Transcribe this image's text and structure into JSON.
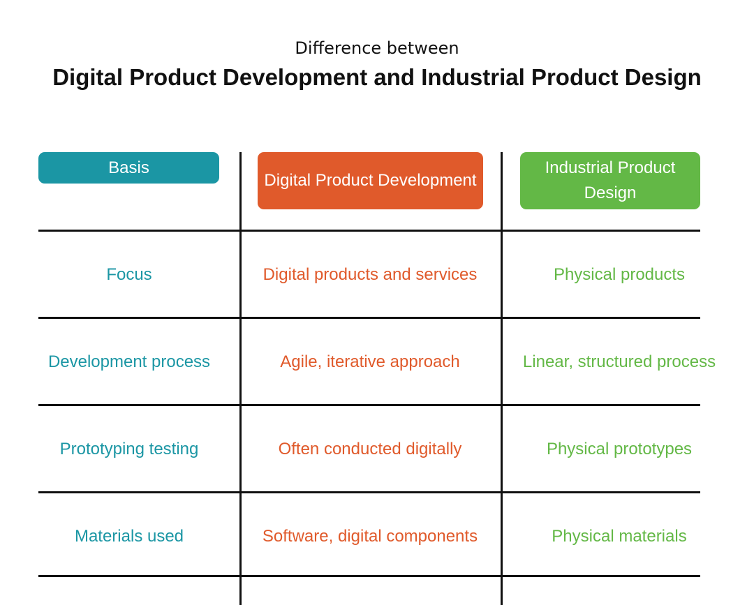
{
  "header": {
    "subtitle": "Difference between",
    "title": "Digital Product Development and Industrial Product Design"
  },
  "table": {
    "columns": [
      "Basis",
      "Digital Product Development",
      "Industrial Product Design"
    ],
    "rows": [
      [
        "Focus",
        "Digital products and services",
        "Physical products"
      ],
      [
        "Development process",
        "Agile, iterative approach",
        "Linear, structured process"
      ],
      [
        "Prototyping testing",
        "Often conducted digitally",
        "Physical prototypes"
      ],
      [
        "Materials used",
        "Software, digital components",
        "Physical materials"
      ]
    ]
  }
}
